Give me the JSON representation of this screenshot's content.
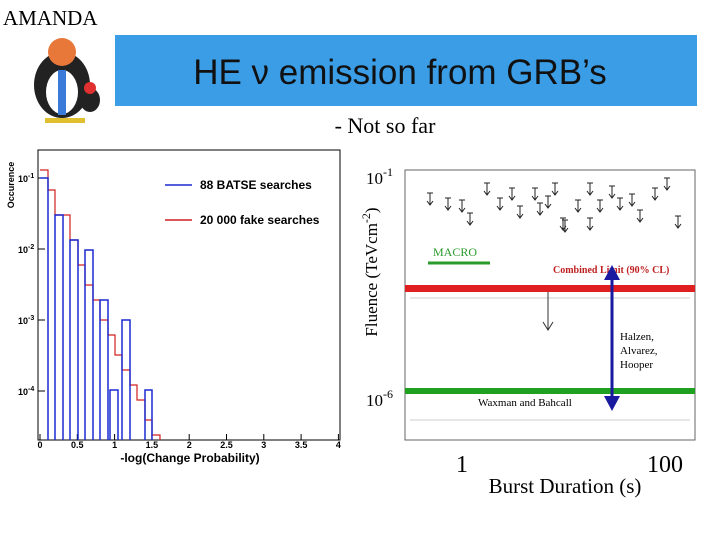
{
  "header": {
    "corner": "AMANDA",
    "title": "HE ν emission from GRB’s",
    "subtitle": "- Not so far"
  },
  "left_plot": {
    "y_label": "Occurence",
    "y_ticks": [
      {
        "base": "10",
        "exp": "-1"
      },
      {
        "base": "10",
        "exp": "-2"
      },
      {
        "base": "10",
        "exp": "-3"
      },
      {
        "base": "10",
        "exp": "-4"
      }
    ],
    "legend": [
      "88 BATSE searches",
      "20 000 fake searches"
    ],
    "x_ticks": [
      "0",
      "0.5",
      "1",
      "1.5",
      "2",
      "2.5",
      "3",
      "3.5",
      "4"
    ],
    "x_label": "-log(Change Probability)"
  },
  "right_plot": {
    "y_label": {
      "before": "Fluence (TeVcm",
      "exp": "-2",
      "after": ")"
    },
    "y_ticks": [
      {
        "base": "10",
        "exp": "-1"
      },
      {
        "base": "10",
        "exp": "-6"
      }
    ],
    "labels": {
      "macro": "MACRO",
      "combined": "Combined Limit (90% CL)",
      "halzen": [
        "Halzen,",
        "Alvarez,",
        "Hooper"
      ],
      "waxman": "Waxman and Bahcall"
    },
    "x_ticks": [
      "1",
      "100"
    ],
    "x_label": "Burst Duration (s)"
  }
}
